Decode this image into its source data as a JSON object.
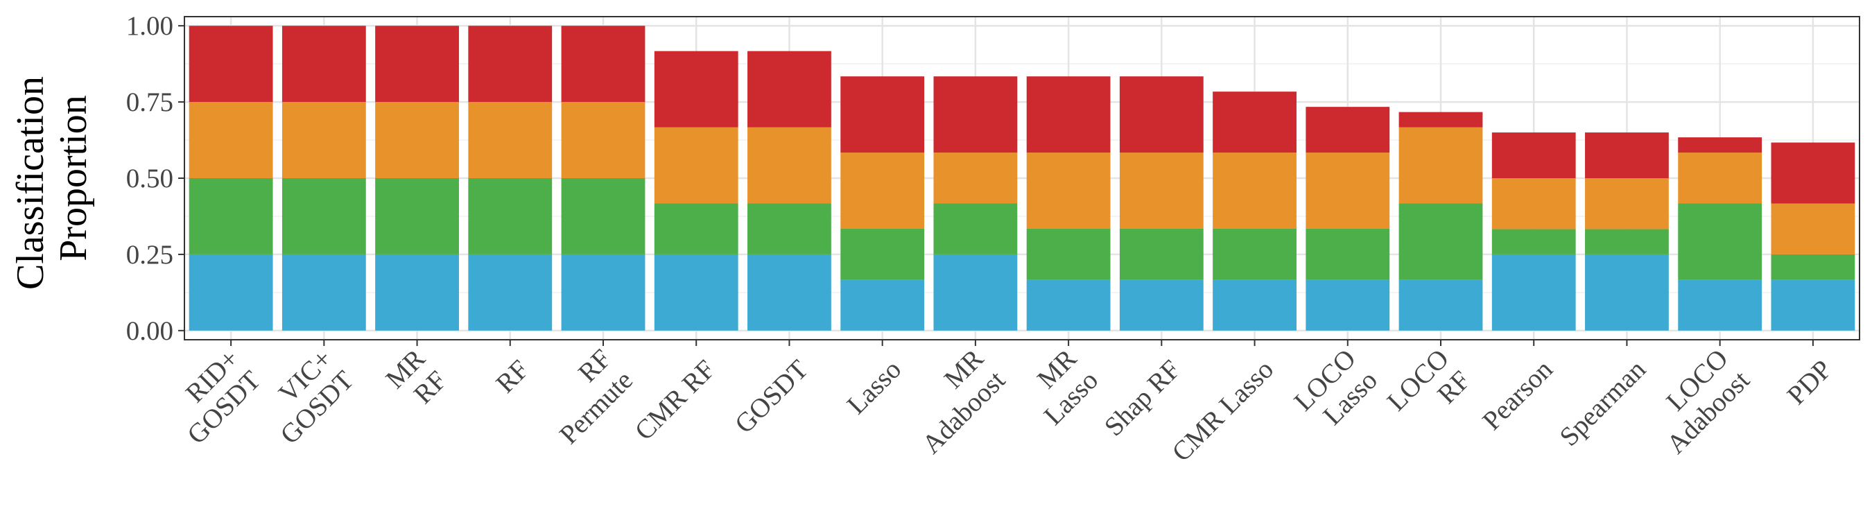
{
  "chart_data": {
    "type": "bar",
    "stacked": true,
    "ylabel_lines": [
      "Classification",
      "Proportion"
    ],
    "ylim": [
      -0.03,
      1.03
    ],
    "yticks": [
      0.0,
      0.25,
      0.5,
      0.75,
      1.0
    ],
    "ytick_labels": [
      "0.00",
      "0.25",
      "0.50",
      "0.75",
      "1.00"
    ],
    "grid": true,
    "legend": "none",
    "categories": [
      [
        "RID+",
        "GOSDT"
      ],
      [
        "VIC+",
        "GOSDT"
      ],
      [
        "MR",
        "RF"
      ],
      [
        "RF"
      ],
      [
        "RF",
        "Permute"
      ],
      [
        "CMR RF"
      ],
      [
        "GOSDT"
      ],
      [
        "Lasso"
      ],
      [
        "MR",
        "Adaboost"
      ],
      [
        "MR",
        "Lasso"
      ],
      [
        "Shap RF"
      ],
      [
        "CMR Lasso"
      ],
      [
        "LOCO",
        "Lasso"
      ],
      [
        "LOCO",
        "RF"
      ],
      [
        "Pearson"
      ],
      [
        "Spearman"
      ],
      [
        "LOCO",
        "Adaboost"
      ],
      [
        "PDP"
      ]
    ],
    "series": [
      {
        "color": "#3CAAD2",
        "values": [
          0.25,
          0.25,
          0.25,
          0.25,
          0.25,
          0.25,
          0.25,
          0.167,
          0.25,
          0.167,
          0.167,
          0.167,
          0.167,
          0.167,
          0.25,
          0.25,
          0.167,
          0.167
        ]
      },
      {
        "color": "#4DAF4A",
        "values": [
          0.25,
          0.25,
          0.25,
          0.25,
          0.25,
          0.167,
          0.167,
          0.167,
          0.167,
          0.167,
          0.167,
          0.167,
          0.167,
          0.25,
          0.083,
          0.083,
          0.25,
          0.083
        ]
      },
      {
        "color": "#E8922B",
        "values": [
          0.25,
          0.25,
          0.25,
          0.25,
          0.25,
          0.25,
          0.25,
          0.25,
          0.167,
          0.25,
          0.25,
          0.25,
          0.25,
          0.25,
          0.167,
          0.167,
          0.167,
          0.167
        ]
      },
      {
        "color": "#CC2A2E",
        "values": [
          0.25,
          0.25,
          0.25,
          0.25,
          0.25,
          0.25,
          0.25,
          0.25,
          0.25,
          0.25,
          0.25,
          0.2,
          0.15,
          0.05,
          0.15,
          0.15,
          0.05,
          0.2
        ]
      }
    ]
  }
}
